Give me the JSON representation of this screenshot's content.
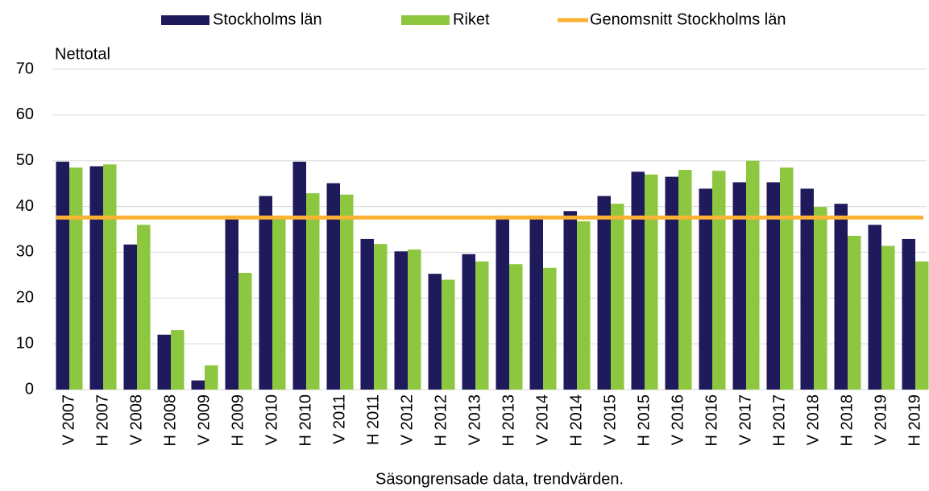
{
  "chart_data": {
    "type": "bar",
    "y_label": "Nettotal",
    "x_label": "Säsongrensade data, trendvärden.",
    "categories": [
      "V 2007",
      "H 2007",
      "V 2008",
      "H 2008",
      "V 2009",
      "H 2009",
      "V 2010",
      "H 2010",
      "V 2011",
      "H 2011",
      "V 2012",
      "H 2012",
      "V 2013",
      "H 2013",
      "V 2014",
      "H 2014",
      "V 2015",
      "H 2015",
      "V 2016",
      "H 2016",
      "V 2017",
      "H 2017",
      "V 2018",
      "H 2018",
      "V 2019",
      "H 2019"
    ],
    "series": [
      {
        "name": "Stockholms län",
        "color": "#1f1a5c",
        "kind": "bar",
        "values": [
          49.8,
          48.8,
          31.7,
          12,
          2,
          38,
          42.3,
          49.8,
          45.1,
          32.9,
          30.2,
          25.3,
          29.6,
          38,
          38,
          39,
          42.3,
          47.6,
          46.5,
          43.9,
          45.3,
          45.3,
          43.9,
          40.6,
          36,
          32.9
        ]
      },
      {
        "name": "Riket",
        "color": "#8dc63f",
        "kind": "bar",
        "values": [
          48.5,
          49.2,
          36,
          13,
          5.3,
          25.5,
          37.6,
          42.9,
          42.6,
          31.8,
          30.6,
          24,
          28,
          27.4,
          26.6,
          36.8,
          40.6,
          47,
          48,
          47.8,
          50,
          48.5,
          39.9,
          33.6,
          31.4,
          28
        ]
      },
      {
        "name": "Genomsnitt Stockholms län",
        "color": "#f9b234",
        "kind": "line",
        "values": [
          37.6,
          37.6,
          37.6,
          37.6,
          37.6,
          37.6,
          37.6,
          37.6,
          37.6,
          37.6,
          37.6,
          37.6,
          37.6,
          37.6,
          37.6,
          37.6,
          37.6,
          37.6,
          37.6,
          37.6,
          37.6,
          37.6,
          37.6,
          37.6,
          37.6,
          37.6
        ]
      }
    ],
    "ylim": [
      0,
      70
    ],
    "yticks": [
      0,
      10,
      20,
      30,
      40,
      50,
      60,
      70
    ],
    "grid": true,
    "legend": "top"
  }
}
